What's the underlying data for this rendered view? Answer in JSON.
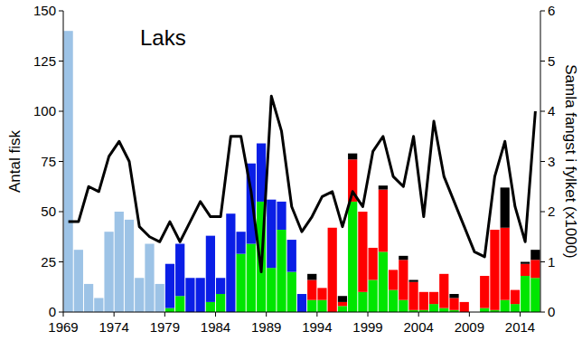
{
  "chart_data": {
    "type": "bar",
    "stacked": true,
    "annotation": "Laks",
    "y_label": "Antal fisk",
    "y2_label": "Samla fangst i fylket (x1000)",
    "categories": [
      "1969",
      null,
      null,
      null,
      null,
      "1974",
      null,
      null,
      null,
      null,
      "1979",
      null,
      null,
      null,
      null,
      "1984",
      null,
      null,
      null,
      null,
      "1989",
      null,
      null,
      null,
      null,
      "1994",
      null,
      null,
      null,
      null,
      "1999",
      null,
      null,
      null,
      null,
      "2004",
      null,
      null,
      null,
      null,
      "2009",
      null,
      null,
      null,
      null,
      "2014",
      null
    ],
    "ylim": [
      0,
      150
    ],
    "yticks": [
      0,
      25,
      50,
      75,
      100,
      125,
      150
    ],
    "y2lim": [
      0,
      6
    ],
    "y2ticks": [
      0,
      1,
      2,
      3,
      4,
      5,
      6
    ],
    "series": [
      {
        "color": "#9dc3e6",
        "values": [
          140,
          31,
          14,
          7,
          40,
          50,
          46,
          17,
          34,
          14,
          null,
          null,
          null,
          null,
          null,
          null,
          null,
          null,
          null,
          null,
          null,
          null,
          null,
          null,
          null,
          null,
          null,
          null,
          null,
          null,
          null,
          null,
          null,
          null,
          null,
          null,
          null,
          null,
          null,
          null,
          null,
          null,
          null,
          null,
          null,
          null,
          null
        ]
      },
      {
        "color": "#00e600",
        "values": [
          null,
          null,
          null,
          null,
          null,
          null,
          null,
          null,
          null,
          null,
          2,
          8,
          0,
          0,
          5,
          9,
          0,
          29,
          34,
          55,
          22,
          41,
          20,
          0,
          6,
          6,
          0,
          3,
          55,
          10,
          16,
          30,
          11,
          6,
          1,
          1,
          4,
          2,
          1,
          0,
          0,
          2,
          1,
          6,
          4,
          18,
          17
        ]
      },
      {
        "color": "#0a1ee6",
        "values": [
          null,
          null,
          null,
          null,
          null,
          null,
          null,
          null,
          null,
          null,
          22,
          26,
          17,
          17,
          33,
          8,
          49,
          11,
          40,
          29,
          34,
          14,
          16,
          9,
          null,
          null,
          null,
          null,
          null,
          null,
          null,
          null,
          null,
          null,
          null,
          null,
          null,
          null,
          null,
          null,
          null,
          null,
          null,
          null,
          null,
          null,
          null
        ]
      },
      {
        "color": "#ff0000",
        "values": [
          null,
          null,
          null,
          null,
          null,
          null,
          null,
          null,
          null,
          null,
          null,
          null,
          null,
          null,
          null,
          null,
          null,
          null,
          null,
          null,
          null,
          null,
          null,
          null,
          10,
          6,
          42,
          2,
          21,
          40,
          16,
          31,
          10,
          20,
          14,
          9,
          6,
          17,
          6,
          5,
          0,
          16,
          40,
          36,
          7,
          6,
          9
        ]
      },
      {
        "color": "#000000",
        "values": [
          null,
          null,
          null,
          null,
          null,
          null,
          null,
          null,
          null,
          null,
          null,
          null,
          null,
          null,
          null,
          null,
          null,
          null,
          null,
          null,
          null,
          null,
          null,
          null,
          3,
          0,
          0,
          3,
          3,
          0,
          0,
          2,
          0,
          2,
          1,
          0,
          0,
          0,
          2,
          0,
          0,
          0,
          0,
          20,
          0,
          1,
          5
        ]
      },
      {
        "type": "line",
        "axis": "y2",
        "color": "#000000",
        "values": [
          1.8,
          1.8,
          2.5,
          2.4,
          3.1,
          3.4,
          3.0,
          1.7,
          1.5,
          1.4,
          1.8,
          1.4,
          1.8,
          2.2,
          1.9,
          1.9,
          3.5,
          3.5,
          2.4,
          0.8,
          4.3,
          3.6,
          2.1,
          1.6,
          1.9,
          2.3,
          2.4,
          1.7,
          2.4,
          2.1,
          3.2,
          3.5,
          2.7,
          2.5,
          3.5,
          1.9,
          3.8,
          2.7,
          2.2,
          1.7,
          1.2,
          1.1,
          2.7,
          3.4,
          2.1,
          1.4,
          4.0
        ]
      }
    ]
  }
}
